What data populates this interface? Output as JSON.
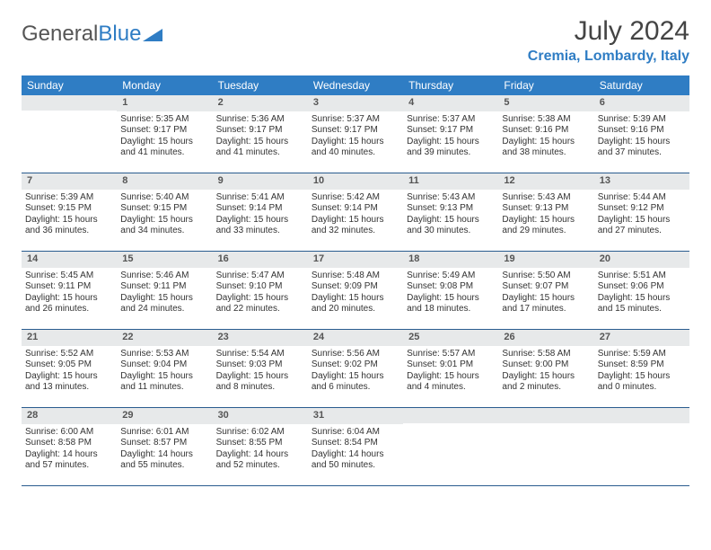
{
  "brand": {
    "part1": "General",
    "part2": "Blue"
  },
  "title": "July 2024",
  "location": "Cremia, Lombardy, Italy",
  "dow": [
    "Sunday",
    "Monday",
    "Tuesday",
    "Wednesday",
    "Thursday",
    "Friday",
    "Saturday"
  ],
  "colors": {
    "headerBar": "#2f7dc4",
    "weekBorder": "#2a5c8f",
    "dayNumBg": "#e7e9ea",
    "text": "#333333",
    "brandBlue": "#2f7dc4",
    "brandGray": "#555555",
    "background": "#ffffff"
  },
  "typography": {
    "titleSize": 30,
    "locationSize": 16,
    "dowSize": 12,
    "cellSize": 10,
    "dayNumSize": 11,
    "fontFamily": "Arial"
  },
  "layout": {
    "columns": 7,
    "rows": 5,
    "cellMinHeight": 86
  },
  "weeks": [
    [
      {
        "n": "",
        "sr": "",
        "ss": "",
        "d1": "",
        "d2": ""
      },
      {
        "n": "1",
        "sr": "Sunrise: 5:35 AM",
        "ss": "Sunset: 9:17 PM",
        "d1": "Daylight: 15 hours",
        "d2": "and 41 minutes."
      },
      {
        "n": "2",
        "sr": "Sunrise: 5:36 AM",
        "ss": "Sunset: 9:17 PM",
        "d1": "Daylight: 15 hours",
        "d2": "and 41 minutes."
      },
      {
        "n": "3",
        "sr": "Sunrise: 5:37 AM",
        "ss": "Sunset: 9:17 PM",
        "d1": "Daylight: 15 hours",
        "d2": "and 40 minutes."
      },
      {
        "n": "4",
        "sr": "Sunrise: 5:37 AM",
        "ss": "Sunset: 9:17 PM",
        "d1": "Daylight: 15 hours",
        "d2": "and 39 minutes."
      },
      {
        "n": "5",
        "sr": "Sunrise: 5:38 AM",
        "ss": "Sunset: 9:16 PM",
        "d1": "Daylight: 15 hours",
        "d2": "and 38 minutes."
      },
      {
        "n": "6",
        "sr": "Sunrise: 5:39 AM",
        "ss": "Sunset: 9:16 PM",
        "d1": "Daylight: 15 hours",
        "d2": "and 37 minutes."
      }
    ],
    [
      {
        "n": "7",
        "sr": "Sunrise: 5:39 AM",
        "ss": "Sunset: 9:15 PM",
        "d1": "Daylight: 15 hours",
        "d2": "and 36 minutes."
      },
      {
        "n": "8",
        "sr": "Sunrise: 5:40 AM",
        "ss": "Sunset: 9:15 PM",
        "d1": "Daylight: 15 hours",
        "d2": "and 34 minutes."
      },
      {
        "n": "9",
        "sr": "Sunrise: 5:41 AM",
        "ss": "Sunset: 9:14 PM",
        "d1": "Daylight: 15 hours",
        "d2": "and 33 minutes."
      },
      {
        "n": "10",
        "sr": "Sunrise: 5:42 AM",
        "ss": "Sunset: 9:14 PM",
        "d1": "Daylight: 15 hours",
        "d2": "and 32 minutes."
      },
      {
        "n": "11",
        "sr": "Sunrise: 5:43 AM",
        "ss": "Sunset: 9:13 PM",
        "d1": "Daylight: 15 hours",
        "d2": "and 30 minutes."
      },
      {
        "n": "12",
        "sr": "Sunrise: 5:43 AM",
        "ss": "Sunset: 9:13 PM",
        "d1": "Daylight: 15 hours",
        "d2": "and 29 minutes."
      },
      {
        "n": "13",
        "sr": "Sunrise: 5:44 AM",
        "ss": "Sunset: 9:12 PM",
        "d1": "Daylight: 15 hours",
        "d2": "and 27 minutes."
      }
    ],
    [
      {
        "n": "14",
        "sr": "Sunrise: 5:45 AM",
        "ss": "Sunset: 9:11 PM",
        "d1": "Daylight: 15 hours",
        "d2": "and 26 minutes."
      },
      {
        "n": "15",
        "sr": "Sunrise: 5:46 AM",
        "ss": "Sunset: 9:11 PM",
        "d1": "Daylight: 15 hours",
        "d2": "and 24 minutes."
      },
      {
        "n": "16",
        "sr": "Sunrise: 5:47 AM",
        "ss": "Sunset: 9:10 PM",
        "d1": "Daylight: 15 hours",
        "d2": "and 22 minutes."
      },
      {
        "n": "17",
        "sr": "Sunrise: 5:48 AM",
        "ss": "Sunset: 9:09 PM",
        "d1": "Daylight: 15 hours",
        "d2": "and 20 minutes."
      },
      {
        "n": "18",
        "sr": "Sunrise: 5:49 AM",
        "ss": "Sunset: 9:08 PM",
        "d1": "Daylight: 15 hours",
        "d2": "and 18 minutes."
      },
      {
        "n": "19",
        "sr": "Sunrise: 5:50 AM",
        "ss": "Sunset: 9:07 PM",
        "d1": "Daylight: 15 hours",
        "d2": "and 17 minutes."
      },
      {
        "n": "20",
        "sr": "Sunrise: 5:51 AM",
        "ss": "Sunset: 9:06 PM",
        "d1": "Daylight: 15 hours",
        "d2": "and 15 minutes."
      }
    ],
    [
      {
        "n": "21",
        "sr": "Sunrise: 5:52 AM",
        "ss": "Sunset: 9:05 PM",
        "d1": "Daylight: 15 hours",
        "d2": "and 13 minutes."
      },
      {
        "n": "22",
        "sr": "Sunrise: 5:53 AM",
        "ss": "Sunset: 9:04 PM",
        "d1": "Daylight: 15 hours",
        "d2": "and 11 minutes."
      },
      {
        "n": "23",
        "sr": "Sunrise: 5:54 AM",
        "ss": "Sunset: 9:03 PM",
        "d1": "Daylight: 15 hours",
        "d2": "and 8 minutes."
      },
      {
        "n": "24",
        "sr": "Sunrise: 5:56 AM",
        "ss": "Sunset: 9:02 PM",
        "d1": "Daylight: 15 hours",
        "d2": "and 6 minutes."
      },
      {
        "n": "25",
        "sr": "Sunrise: 5:57 AM",
        "ss": "Sunset: 9:01 PM",
        "d1": "Daylight: 15 hours",
        "d2": "and 4 minutes."
      },
      {
        "n": "26",
        "sr": "Sunrise: 5:58 AM",
        "ss": "Sunset: 9:00 PM",
        "d1": "Daylight: 15 hours",
        "d2": "and 2 minutes."
      },
      {
        "n": "27",
        "sr": "Sunrise: 5:59 AM",
        "ss": "Sunset: 8:59 PM",
        "d1": "Daylight: 15 hours",
        "d2": "and 0 minutes."
      }
    ],
    [
      {
        "n": "28",
        "sr": "Sunrise: 6:00 AM",
        "ss": "Sunset: 8:58 PM",
        "d1": "Daylight: 14 hours",
        "d2": "and 57 minutes."
      },
      {
        "n": "29",
        "sr": "Sunrise: 6:01 AM",
        "ss": "Sunset: 8:57 PM",
        "d1": "Daylight: 14 hours",
        "d2": "and 55 minutes."
      },
      {
        "n": "30",
        "sr": "Sunrise: 6:02 AM",
        "ss": "Sunset: 8:55 PM",
        "d1": "Daylight: 14 hours",
        "d2": "and 52 minutes."
      },
      {
        "n": "31",
        "sr": "Sunrise: 6:04 AM",
        "ss": "Sunset: 8:54 PM",
        "d1": "Daylight: 14 hours",
        "d2": "and 50 minutes."
      },
      {
        "n": "",
        "sr": "",
        "ss": "",
        "d1": "",
        "d2": ""
      },
      {
        "n": "",
        "sr": "",
        "ss": "",
        "d1": "",
        "d2": ""
      },
      {
        "n": "",
        "sr": "",
        "ss": "",
        "d1": "",
        "d2": ""
      }
    ]
  ]
}
